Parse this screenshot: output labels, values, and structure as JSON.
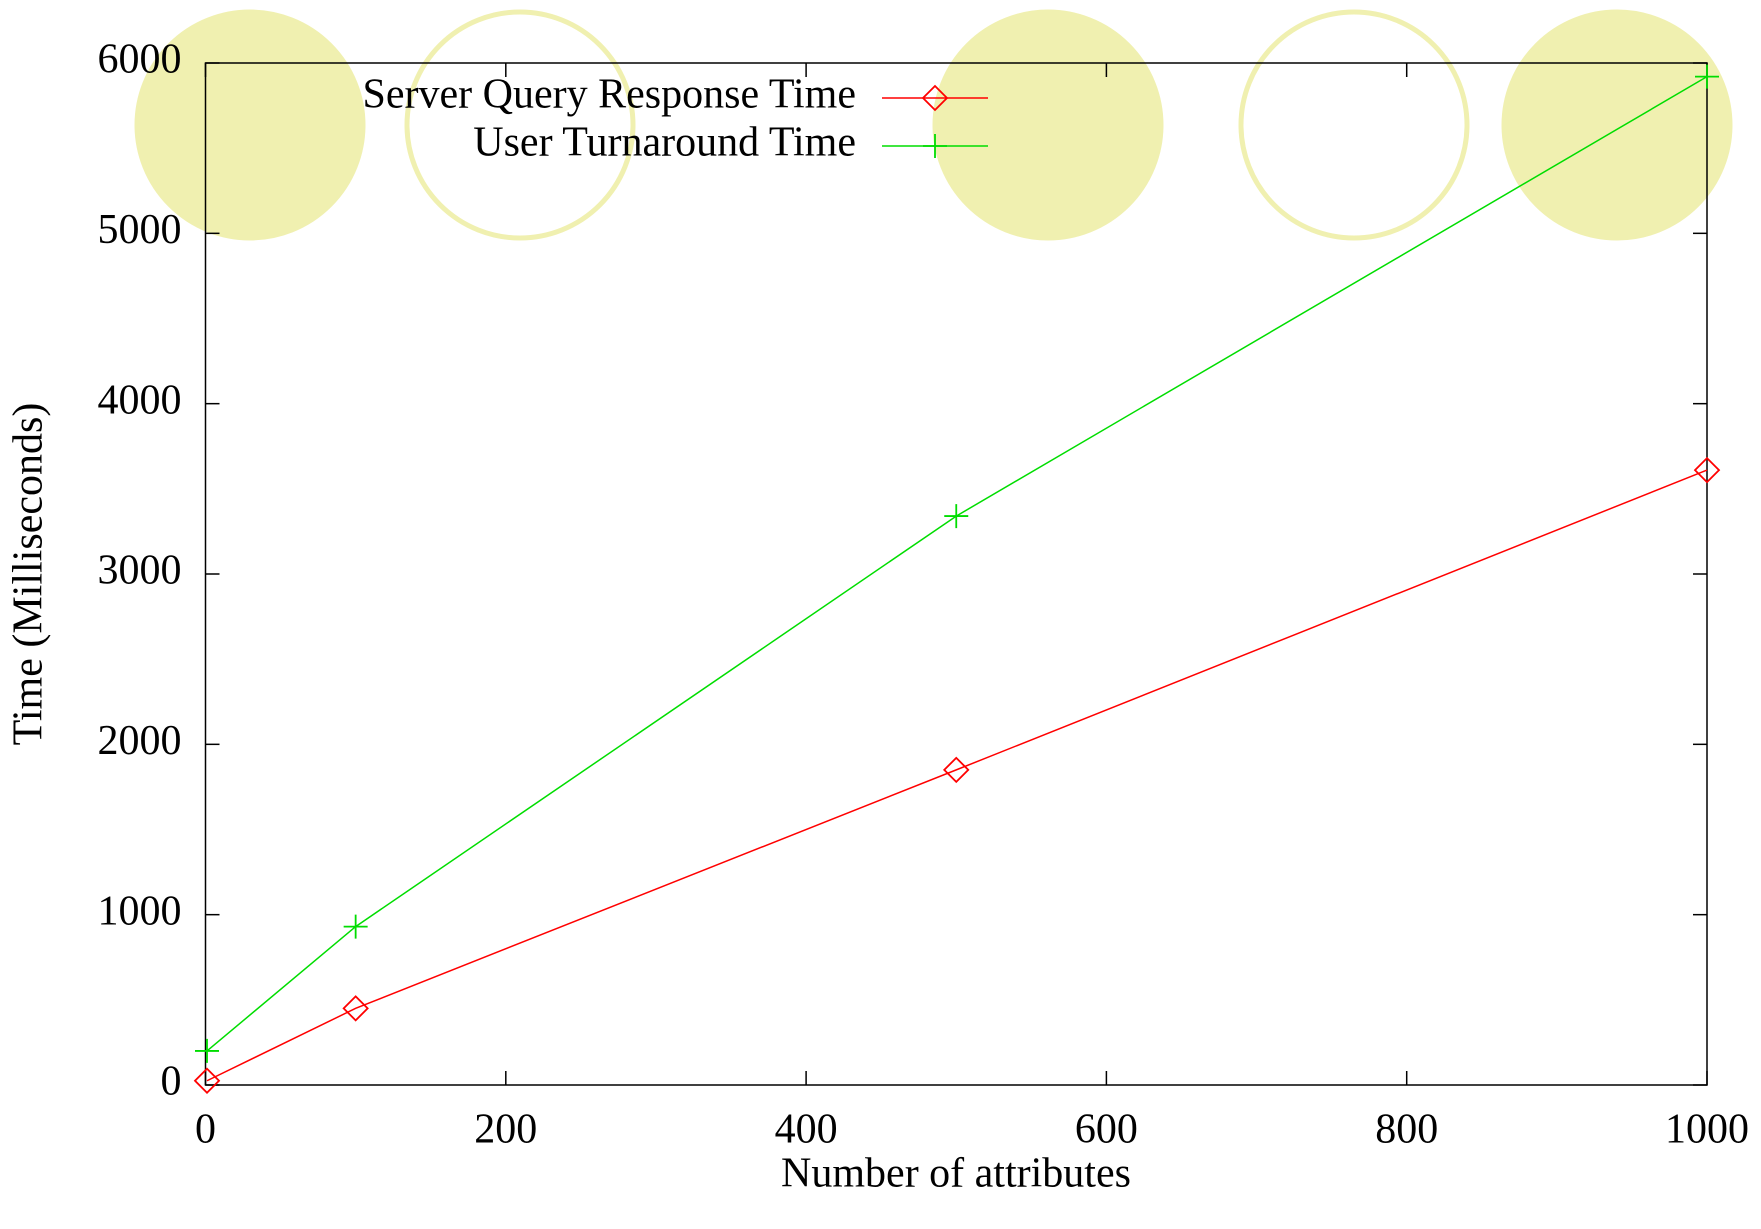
{
  "chart_data": {
    "type": "line",
    "xlabel": "Number of attributes",
    "ylabel": "Time (Milliseconds)",
    "x": [
      1,
      100,
      500,
      1000
    ],
    "series": [
      {
        "name": "Server Query Response Time",
        "color": "#ff0000",
        "marker": "diamond",
        "values": [
          25,
          450,
          1850,
          3610
        ]
      },
      {
        "name": "User Turnaround Time",
        "color": "#00dd00",
        "marker": "plus",
        "values": [
          200,
          930,
          3340,
          5920
        ]
      }
    ],
    "xlim": [
      0,
      1000
    ],
    "xticks": [
      0,
      200,
      400,
      600,
      800,
      1000
    ],
    "ylim": [
      0,
      6000
    ],
    "yticks": [
      0,
      1000,
      2000,
      3000,
      4000,
      5000,
      6000
    ],
    "legend": "top-left",
    "grid": false
  }
}
